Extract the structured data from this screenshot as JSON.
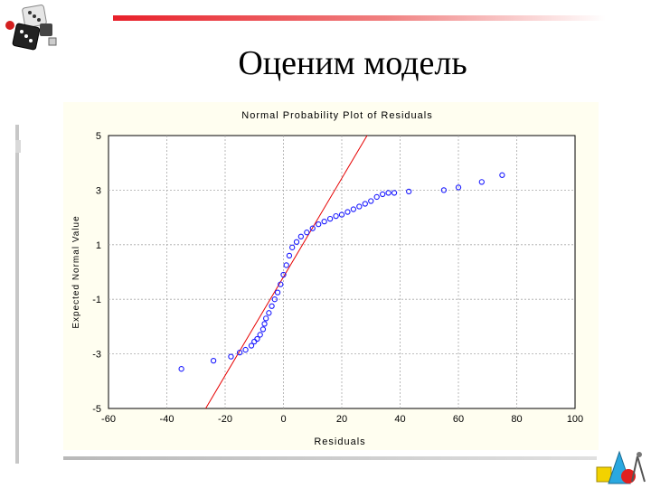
{
  "slide": {
    "title": "Оценим модель"
  },
  "chart_data": {
    "type": "scatter",
    "title": "Normal Probability Plot of Residuals",
    "xlabel": "Residuals",
    "ylabel": "Expected Normal Value",
    "xlim": [
      -60,
      100
    ],
    "ylim": [
      -5,
      5
    ],
    "xticks": [
      -60,
      -40,
      -20,
      0,
      20,
      40,
      60,
      80,
      100
    ],
    "yticks": [
      -5,
      -3,
      -1,
      1,
      3,
      5
    ],
    "xtick_labels": [
      "-60",
      "-40",
      "-20",
      "0",
      "20",
      "40",
      "60",
      "80",
      "100"
    ],
    "ytick_labels": [
      "-5",
      "-3",
      "-1",
      "1",
      "3",
      "5"
    ],
    "grid": true,
    "reference_line": {
      "x": [
        -30,
        32
      ],
      "y": [
        -5.6,
        5.6
      ],
      "color": "#e60000"
    },
    "marker_color": "#1a1aff",
    "series": [
      {
        "points": [
          [
            -35,
            -3.55
          ],
          [
            -24,
            -3.25
          ],
          [
            -18,
            -3.1
          ],
          [
            -15,
            -2.95
          ],
          [
            -13,
            -2.85
          ],
          [
            -11,
            -2.7
          ],
          [
            -10,
            -2.55
          ],
          [
            -9,
            -2.45
          ],
          [
            -8,
            -2.3
          ],
          [
            -7,
            -2.1
          ],
          [
            -6.5,
            -1.9
          ],
          [
            -6,
            -1.7
          ],
          [
            -5,
            -1.5
          ],
          [
            -4,
            -1.25
          ],
          [
            -3,
            -1.0
          ],
          [
            -2,
            -0.75
          ],
          [
            -1,
            -0.45
          ],
          [
            0,
            -0.1
          ],
          [
            1,
            0.25
          ],
          [
            2,
            0.6
          ],
          [
            3,
            0.9
          ],
          [
            4.5,
            1.1
          ],
          [
            6,
            1.3
          ],
          [
            8,
            1.45
          ],
          [
            10,
            1.6
          ],
          [
            12,
            1.75
          ],
          [
            14,
            1.85
          ],
          [
            16,
            1.95
          ],
          [
            18,
            2.05
          ],
          [
            20,
            2.1
          ],
          [
            22,
            2.2
          ],
          [
            24,
            2.3
          ],
          [
            26,
            2.4
          ],
          [
            28,
            2.5
          ],
          [
            30,
            2.6
          ],
          [
            32,
            2.75
          ],
          [
            34,
            2.85
          ],
          [
            36,
            2.9
          ],
          [
            38,
            2.9
          ],
          [
            43,
            2.95
          ],
          [
            55,
            3.0
          ],
          [
            60,
            3.1
          ],
          [
            68,
            3.3
          ],
          [
            75,
            3.55
          ]
        ]
      }
    ]
  }
}
